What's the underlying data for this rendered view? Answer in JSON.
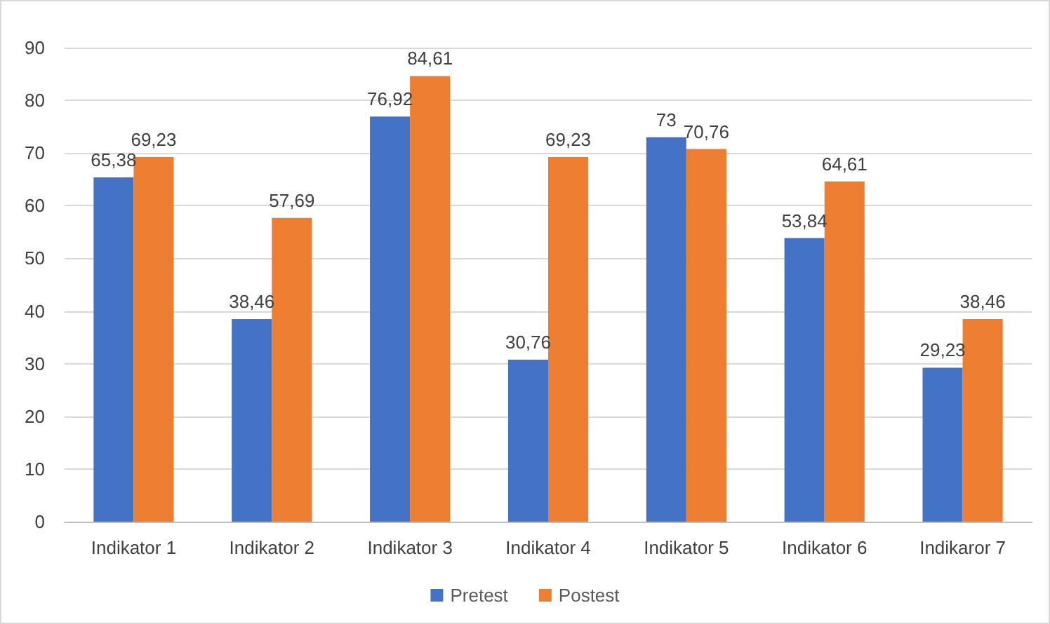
{
  "chart_data": {
    "type": "bar",
    "categories": [
      "Indikator 1",
      "Indikator 2",
      "Indikator 3",
      "Indikator 4",
      "Indikator 5",
      "Indikator 6",
      "Indikaror 7"
    ],
    "series": [
      {
        "name": "Pretest",
        "color": "#4472c4",
        "values": [
          65.38,
          38.46,
          76.92,
          30.76,
          73,
          53.84,
          29.23
        ],
        "value_labels": [
          "65,38",
          "38,46",
          "76,92",
          "30,76",
          "73",
          "53,84",
          "29,23"
        ]
      },
      {
        "name": "Postest",
        "color": "#ed7d31",
        "values": [
          69.23,
          57.69,
          84.61,
          69.23,
          70.76,
          64.61,
          38.46
        ],
        "value_labels": [
          "69,23",
          "57,69",
          "84,61",
          "69,23",
          "70,76",
          "64,61",
          "38,46"
        ]
      }
    ],
    "ylim": [
      0,
      90
    ],
    "yticks": [
      0,
      10,
      20,
      30,
      40,
      50,
      60,
      70,
      80,
      90
    ],
    "grid": "y",
    "legend": "bottom"
  }
}
